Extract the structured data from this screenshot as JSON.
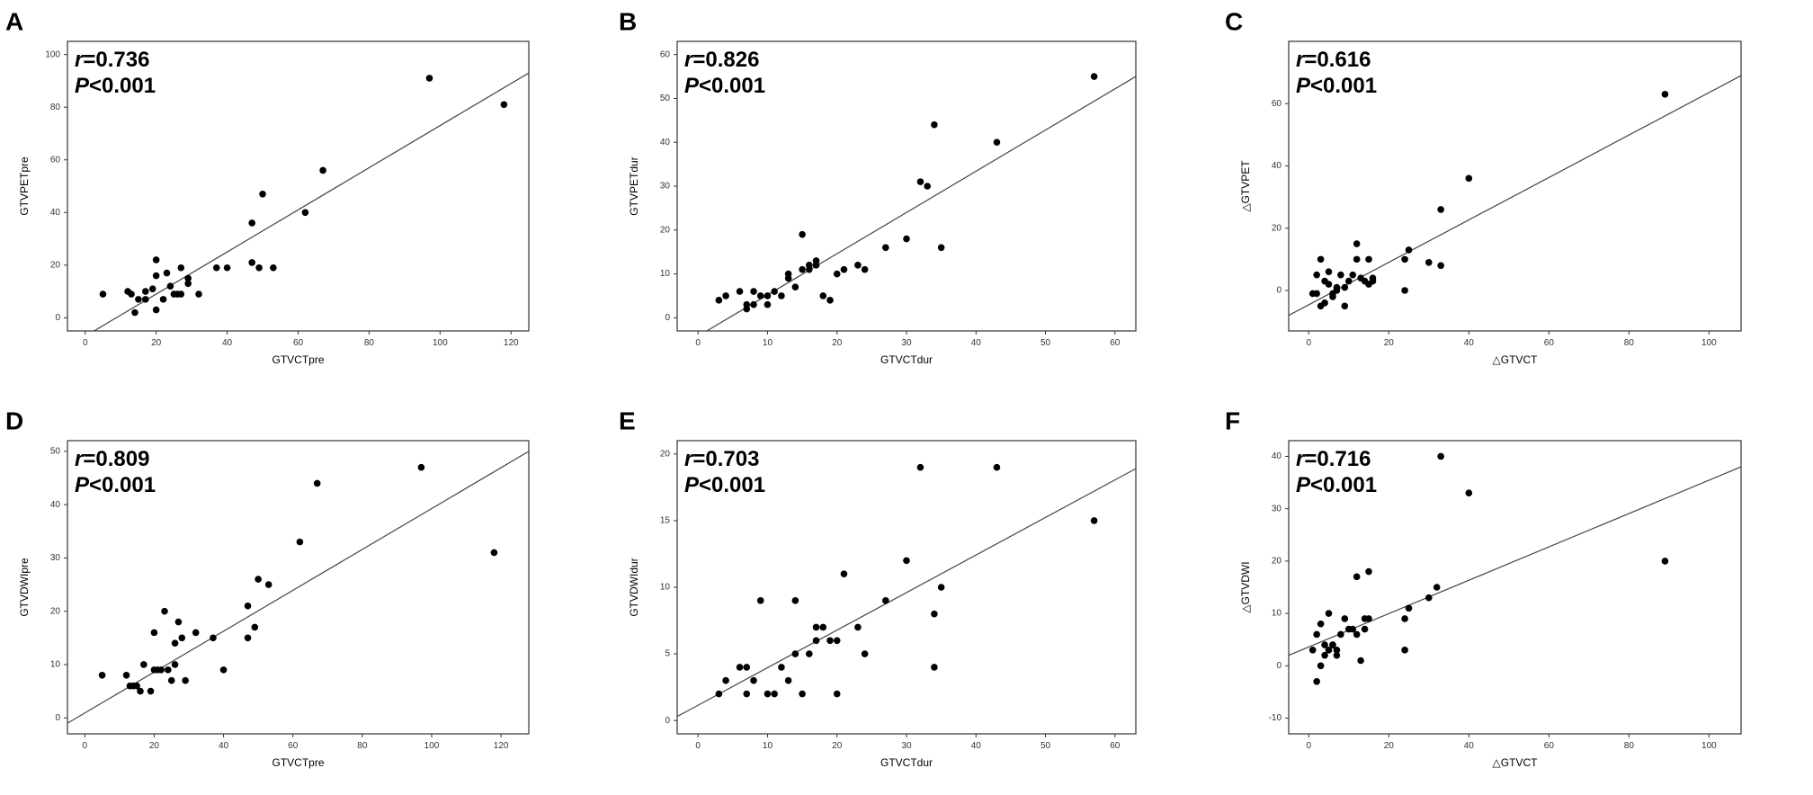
{
  "stat_prefixes": {
    "r": "r",
    "p": "P"
  },
  "chart_data": [
    {
      "panel": "A",
      "type": "scatter",
      "xlabel": "GTVCTpre",
      "ylabel": "GTVPETpre",
      "r_text": "=0.736",
      "p_text": "<0.001",
      "xlim": [
        -5,
        125
      ],
      "ylim": [
        -5,
        105
      ],
      "xticks": [
        0,
        20,
        40,
        60,
        80,
        100,
        120
      ],
      "yticks": [
        0,
        20,
        40,
        60,
        80,
        100
      ],
      "regression": {
        "x": [
          -5,
          125
        ],
        "y": [
          -11,
          93
        ]
      },
      "points": [
        [
          5,
          9
        ],
        [
          12,
          10
        ],
        [
          13,
          9
        ],
        [
          14,
          2
        ],
        [
          15,
          7
        ],
        [
          17,
          7
        ],
        [
          17,
          10
        ],
        [
          19,
          11
        ],
        [
          20,
          16
        ],
        [
          20,
          22
        ],
        [
          20,
          3
        ],
        [
          22,
          7
        ],
        [
          23,
          17
        ],
        [
          24,
          12
        ],
        [
          25,
          9
        ],
        [
          26,
          9
        ],
        [
          27,
          9
        ],
        [
          27,
          19
        ],
        [
          29,
          13
        ],
        [
          29,
          15
        ],
        [
          32,
          9
        ],
        [
          37,
          19
        ],
        [
          40,
          19
        ],
        [
          47,
          21
        ],
        [
          47,
          36
        ],
        [
          49,
          19
        ],
        [
          50,
          47
        ],
        [
          53,
          19
        ],
        [
          62,
          40
        ],
        [
          67,
          56
        ],
        [
          97,
          91
        ],
        [
          118,
          81
        ]
      ]
    },
    {
      "panel": "B",
      "type": "scatter",
      "xlabel": "GTVCTdur",
      "ylabel": "GTVPETdur",
      "r_text": "=0.826",
      "p_text": "<0.001",
      "xlim": [
        -3,
        63
      ],
      "ylim": [
        -3,
        63
      ],
      "xticks": [
        0,
        10,
        20,
        30,
        40,
        50,
        60
      ],
      "yticks": [
        0,
        10,
        20,
        30,
        40,
        50,
        60
      ],
      "regression": {
        "x": [
          -3,
          63
        ],
        "y": [
          -7,
          55
        ]
      },
      "points": [
        [
          3,
          4
        ],
        [
          4,
          5
        ],
        [
          6,
          6
        ],
        [
          7,
          3
        ],
        [
          7,
          2
        ],
        [
          8,
          6
        ],
        [
          8,
          3
        ],
        [
          9,
          5
        ],
        [
          10,
          3
        ],
        [
          10,
          5
        ],
        [
          11,
          6
        ],
        [
          12,
          5
        ],
        [
          13,
          9
        ],
        [
          13,
          10
        ],
        [
          14,
          7
        ],
        [
          15,
          11
        ],
        [
          15,
          19
        ],
        [
          16,
          11
        ],
        [
          16,
          12
        ],
        [
          17,
          12
        ],
        [
          17,
          13
        ],
        [
          18,
          5
        ],
        [
          19,
          4
        ],
        [
          20,
          10
        ],
        [
          21,
          11
        ],
        [
          23,
          12
        ],
        [
          24,
          11
        ],
        [
          27,
          16
        ],
        [
          30,
          18
        ],
        [
          32,
          31
        ],
        [
          33,
          30
        ],
        [
          34,
          44
        ],
        [
          35,
          16
        ],
        [
          43,
          40
        ],
        [
          57,
          55
        ]
      ]
    },
    {
      "panel": "C",
      "type": "scatter",
      "xlabel": "△GTVCT",
      "ylabel": "△GTVPET",
      "r_text": "=0.616",
      "p_text": "<0.001",
      "xlim": [
        -5,
        108
      ],
      "ylim": [
        -13,
        80
      ],
      "xticks": [
        0,
        20,
        40,
        60,
        80,
        100
      ],
      "yticks": [
        0,
        20,
        40,
        60
      ],
      "regression": {
        "x": [
          -5,
          108
        ],
        "y": [
          -8,
          69
        ]
      },
      "points": [
        [
          1,
          -1
        ],
        [
          2,
          5
        ],
        [
          2,
          -1
        ],
        [
          3,
          -5
        ],
        [
          3,
          10
        ],
        [
          4,
          -4
        ],
        [
          4,
          3
        ],
        [
          5,
          2
        ],
        [
          5,
          6
        ],
        [
          6,
          -1
        ],
        [
          6,
          -2
        ],
        [
          7,
          0
        ],
        [
          7,
          1
        ],
        [
          8,
          5
        ],
        [
          9,
          -5
        ],
        [
          9,
          1
        ],
        [
          10,
          3
        ],
        [
          11,
          5
        ],
        [
          12,
          10
        ],
        [
          12,
          15
        ],
        [
          13,
          4
        ],
        [
          14,
          3
        ],
        [
          15,
          2
        ],
        [
          15,
          10
        ],
        [
          16,
          4
        ],
        [
          16,
          3
        ],
        [
          24,
          10
        ],
        [
          24,
          0
        ],
        [
          25,
          13
        ],
        [
          30,
          9
        ],
        [
          33,
          26
        ],
        [
          33,
          8
        ],
        [
          40,
          36
        ],
        [
          89,
          63
        ]
      ]
    },
    {
      "panel": "D",
      "type": "scatter",
      "xlabel": "GTVCTpre",
      "ylabel": "GTVDWIpre",
      "r_text": "=0.809",
      "p_text": "<0.001",
      "xlim": [
        -5,
        128
      ],
      "ylim": [
        -3,
        52
      ],
      "xticks": [
        0,
        20,
        40,
        60,
        80,
        100,
        120
      ],
      "yticks": [
        0,
        10,
        20,
        30,
        40,
        50
      ],
      "regression": {
        "x": [
          -5,
          128
        ],
        "y": [
          -1,
          50
        ]
      },
      "points": [
        [
          5,
          8
        ],
        [
          12,
          8
        ],
        [
          13,
          6
        ],
        [
          14,
          6
        ],
        [
          15,
          6
        ],
        [
          16,
          5
        ],
        [
          17,
          10
        ],
        [
          19,
          5
        ],
        [
          20,
          9
        ],
        [
          20,
          16
        ],
        [
          21,
          9
        ],
        [
          22,
          9
        ],
        [
          23,
          20
        ],
        [
          24,
          9
        ],
        [
          25,
          7
        ],
        [
          26,
          14
        ],
        [
          26,
          10
        ],
        [
          27,
          18
        ],
        [
          28,
          15
        ],
        [
          29,
          7
        ],
        [
          32,
          16
        ],
        [
          37,
          15
        ],
        [
          40,
          9
        ],
        [
          47,
          21
        ],
        [
          47,
          15
        ],
        [
          49,
          17
        ],
        [
          50,
          26
        ],
        [
          53,
          25
        ],
        [
          62,
          33
        ],
        [
          67,
          44
        ],
        [
          97,
          47
        ],
        [
          118,
          31
        ]
      ]
    },
    {
      "panel": "E",
      "type": "scatter",
      "xlabel": "GTVCTdur",
      "ylabel": "GTVDWIdur",
      "r_text": "=0.703",
      "p_text": "<0.001",
      "xlim": [
        -3,
        63
      ],
      "ylim": [
        -1,
        21
      ],
      "xticks": [
        0,
        10,
        20,
        30,
        40,
        50,
        60
      ],
      "yticks": [
        0,
        5,
        10,
        15,
        20
      ],
      "regression": {
        "x": [
          -3,
          63
        ],
        "y": [
          0.3,
          18.9
        ]
      },
      "points": [
        [
          3,
          2
        ],
        [
          4,
          3
        ],
        [
          6,
          4
        ],
        [
          7,
          2
        ],
        [
          7,
          4
        ],
        [
          8,
          3
        ],
        [
          9,
          9
        ],
        [
          10,
          2
        ],
        [
          11,
          2
        ],
        [
          12,
          4
        ],
        [
          13,
          3
        ],
        [
          14,
          9
        ],
        [
          14,
          5
        ],
        [
          15,
          2
        ],
        [
          16,
          5
        ],
        [
          17,
          6
        ],
        [
          17,
          7
        ],
        [
          18,
          7
        ],
        [
          19,
          6
        ],
        [
          20,
          2
        ],
        [
          20,
          6
        ],
        [
          21,
          11
        ],
        [
          23,
          7
        ],
        [
          24,
          5
        ],
        [
          27,
          9
        ],
        [
          30,
          12
        ],
        [
          32,
          19
        ],
        [
          34,
          4
        ],
        [
          34,
          8
        ],
        [
          35,
          10
        ],
        [
          43,
          19
        ],
        [
          57,
          15
        ]
      ]
    },
    {
      "panel": "F",
      "type": "scatter",
      "xlabel": "△GTVCT",
      "ylabel": "△GTVDWI",
      "r_text": "=0.716",
      "p_text": "<0.001",
      "xlim": [
        -5,
        108
      ],
      "ylim": [
        -13,
        43
      ],
      "xticks": [
        0,
        20,
        40,
        60,
        80,
        100
      ],
      "yticks": [
        -10,
        0,
        10,
        20,
        30,
        40
      ],
      "regression": {
        "x": [
          -5,
          108
        ],
        "y": [
          2,
          38
        ]
      },
      "points": [
        [
          1,
          3
        ],
        [
          2,
          6
        ],
        [
          2,
          -3
        ],
        [
          3,
          0
        ],
        [
          3,
          8
        ],
        [
          4,
          2
        ],
        [
          4,
          4
        ],
        [
          5,
          3
        ],
        [
          5,
          10
        ],
        [
          6,
          4
        ],
        [
          6,
          4
        ],
        [
          7,
          2
        ],
        [
          7,
          3
        ],
        [
          8,
          6
        ],
        [
          9,
          9
        ],
        [
          10,
          7
        ],
        [
          11,
          7
        ],
        [
          12,
          6
        ],
        [
          12,
          17
        ],
        [
          13,
          1
        ],
        [
          14,
          9
        ],
        [
          14,
          7
        ],
        [
          15,
          9
        ],
        [
          15,
          18
        ],
        [
          24,
          9
        ],
        [
          24,
          3
        ],
        [
          25,
          11
        ],
        [
          30,
          13
        ],
        [
          32,
          15
        ],
        [
          33,
          40
        ],
        [
          40,
          33
        ],
        [
          89,
          20
        ]
      ]
    }
  ]
}
